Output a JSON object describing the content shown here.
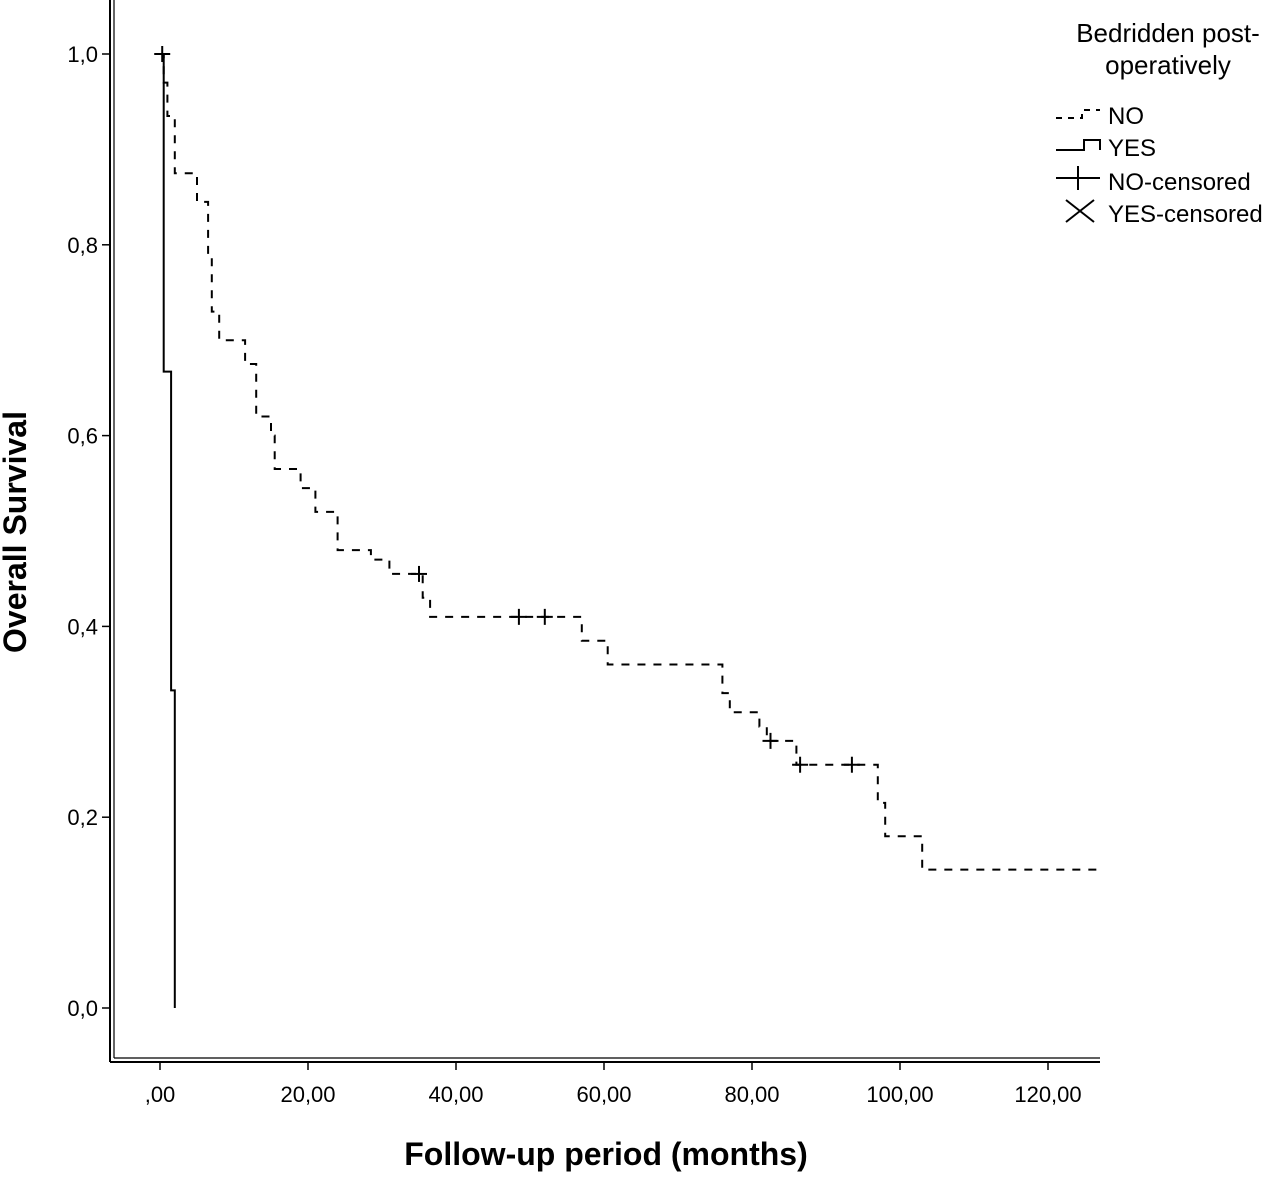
{
  "chart_data": {
    "type": "line",
    "subtype": "kaplan-meier step",
    "xlabel": "Follow-up period (months)",
    "ylabel": "Overall Survival",
    "xlim": [
      -7,
      127
    ],
    "ylim": [
      0,
      1
    ],
    "x_ticks": [
      {
        "value": 0,
        "label": ",00"
      },
      {
        "value": 20,
        "label": "20,00"
      },
      {
        "value": 40,
        "label": "40,00"
      },
      {
        "value": 60,
        "label": "60,00"
      },
      {
        "value": 80,
        "label": "80,00"
      },
      {
        "value": 100,
        "label": "100,00"
      },
      {
        "value": 120,
        "label": "120,00"
      }
    ],
    "y_ticks": [
      {
        "value": 0.0,
        "label": "0,0"
      },
      {
        "value": 0.2,
        "label": "0,2"
      },
      {
        "value": 0.4,
        "label": "0,4"
      },
      {
        "value": 0.6,
        "label": "0,6"
      },
      {
        "value": 0.8,
        "label": "0,8"
      },
      {
        "value": 1.0,
        "label": "1,0"
      }
    ],
    "grid": false,
    "legend": {
      "title_lines": [
        "Bedridden post-",
        "operatively"
      ],
      "placement": "top-right",
      "entries": [
        "NO",
        "YES",
        "NO-censored",
        "YES-censored"
      ]
    },
    "series": [
      {
        "name": "NO",
        "style": "dashed",
        "color": "#000000",
        "steps": [
          [
            0,
            1.0
          ],
          [
            0.5,
            0.97
          ],
          [
            1,
            0.935
          ],
          [
            2,
            0.875
          ],
          [
            5,
            0.845
          ],
          [
            6.5,
            0.79
          ],
          [
            7,
            0.73
          ],
          [
            8,
            0.7
          ],
          [
            11.5,
            0.675
          ],
          [
            13,
            0.62
          ],
          [
            15,
            0.6
          ],
          [
            15.5,
            0.565
          ],
          [
            19,
            0.545
          ],
          [
            21,
            0.52
          ],
          [
            24,
            0.48
          ],
          [
            28.5,
            0.47
          ],
          [
            31,
            0.455
          ],
          [
            35.5,
            0.43
          ],
          [
            36.5,
            0.41
          ],
          [
            57,
            0.385
          ],
          [
            60.5,
            0.36
          ],
          [
            76,
            0.33
          ],
          [
            77,
            0.31
          ],
          [
            81,
            0.295
          ],
          [
            82,
            0.28
          ],
          [
            86,
            0.255
          ],
          [
            97,
            0.215
          ],
          [
            98,
            0.18
          ],
          [
            103,
            0.145
          ],
          [
            127,
            0.145
          ]
        ],
        "censored": [
          [
            0.3,
            1.0
          ],
          [
            35,
            0.455
          ],
          [
            48.5,
            0.41
          ],
          [
            52,
            0.41
          ],
          [
            82.5,
            0.28
          ],
          [
            86.5,
            0.255
          ],
          [
            93.5,
            0.255
          ]
        ]
      },
      {
        "name": "YES",
        "style": "solid",
        "color": "#000000",
        "steps": [
          [
            0,
            1.0
          ],
          [
            0.5,
            0.667
          ],
          [
            1.5,
            0.333
          ],
          [
            2,
            0.0
          ]
        ],
        "censored": []
      }
    ]
  }
}
